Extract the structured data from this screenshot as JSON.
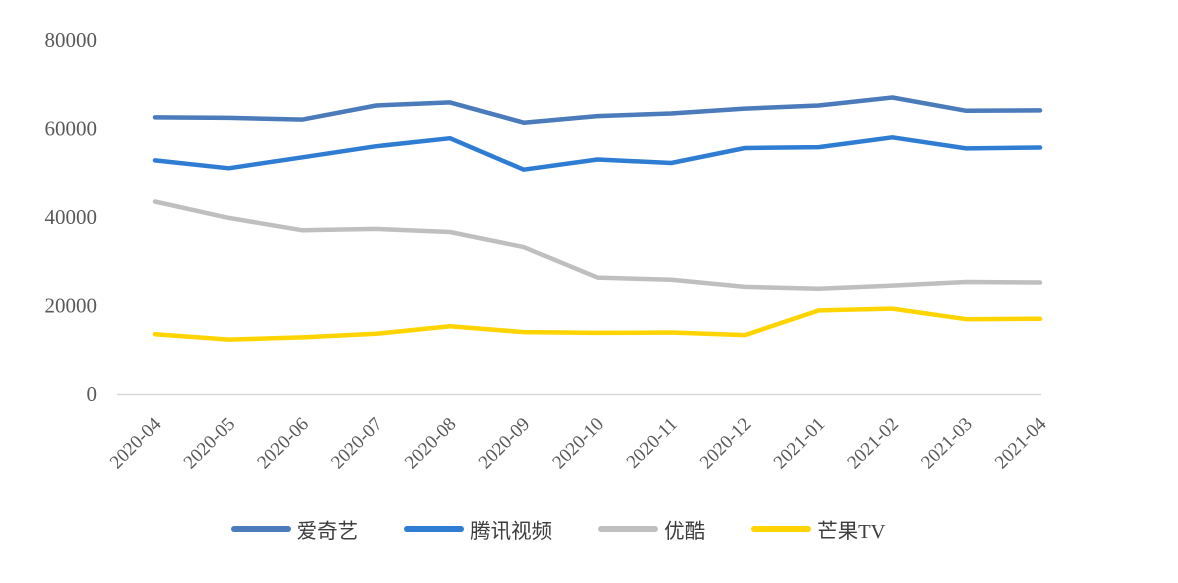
{
  "chart_data": {
    "type": "line",
    "title": "",
    "xlabel": "",
    "ylabel": "",
    "categories": [
      "2020-04",
      "2020-05",
      "2020-06",
      "2020-07",
      "2020-08",
      "2020-09",
      "2020-10",
      "2020-11",
      "2020-12",
      "2021-01",
      "2021-02",
      "2021-03",
      "2021-04"
    ],
    "series": [
      {
        "name": "爱奇艺",
        "color": "#4B7BBA",
        "values": [
          62500,
          62400,
          62000,
          65200,
          65900,
          61300,
          62800,
          63400,
          64500,
          65200,
          67000,
          64000,
          64100
        ]
      },
      {
        "name": "腾讯视频",
        "color": "#2F7DD3",
        "values": [
          52800,
          51000,
          53500,
          56000,
          57800,
          50700,
          53000,
          52200,
          55600,
          55800,
          58000,
          55500,
          55700
        ]
      },
      {
        "name": "优酷",
        "color": "#BFBFBF",
        "values": [
          43500,
          39800,
          37000,
          37300,
          36600,
          33200,
          26300,
          25800,
          24200,
          23800,
          24500,
          25300,
          25200
        ]
      },
      {
        "name": "芒果TV",
        "color": "#FFD400",
        "values": [
          13500,
          12300,
          12800,
          13600,
          15300,
          14000,
          13800,
          13900,
          13300,
          18900,
          19300,
          16900,
          17000
        ]
      }
    ],
    "ylim": [
      0,
      80000
    ],
    "yticks": [
      0,
      20000,
      40000,
      60000,
      80000
    ],
    "grid": false,
    "legend_position": "bottom",
    "axis_color": "#D9D9D9",
    "tick_label_color": "#595959",
    "legend_text_color": "#3d3d3d",
    "x_labels_rotation_deg": -45
  }
}
